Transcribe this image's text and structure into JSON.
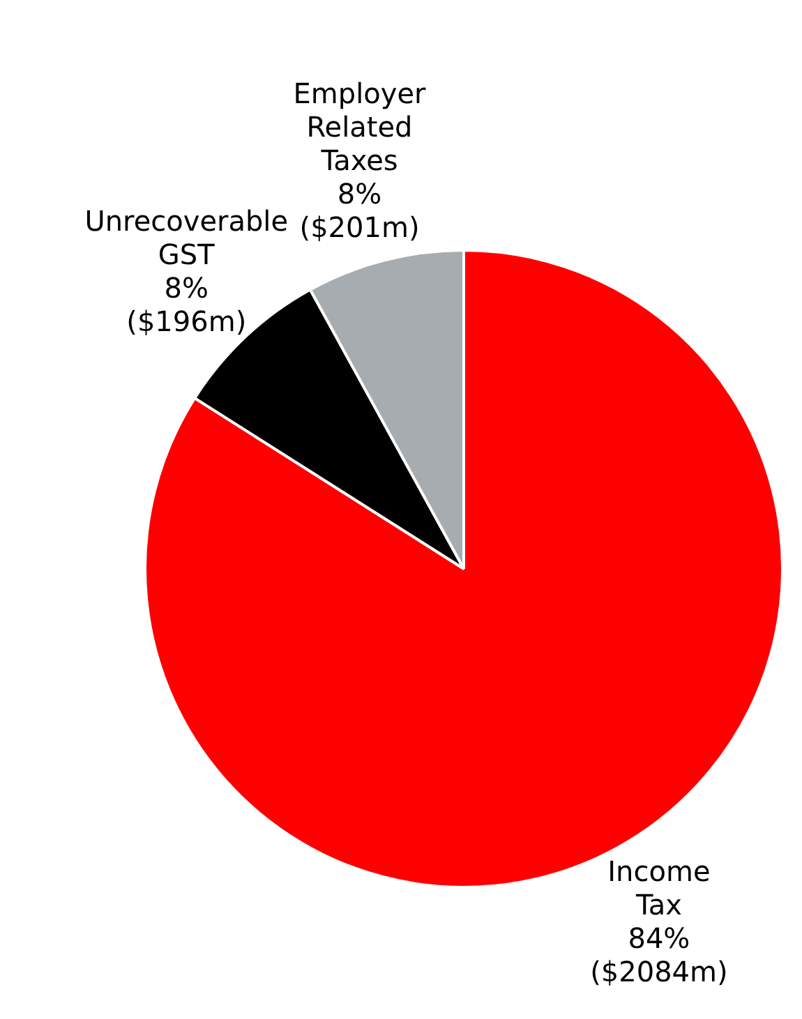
{
  "chart_data": {
    "type": "pie",
    "categories": [
      "Income Tax",
      "Unrecoverable GST",
      "Employer Related Taxes"
    ],
    "values": [
      84,
      8,
      8
    ],
    "colors": [
      "#ff0000",
      "#000000",
      "#a6acaf"
    ],
    "value_labels": [
      "84% ($2084m)",
      "8% ($196m)",
      "8% ($201m)"
    ],
    "legend": false
  }
}
